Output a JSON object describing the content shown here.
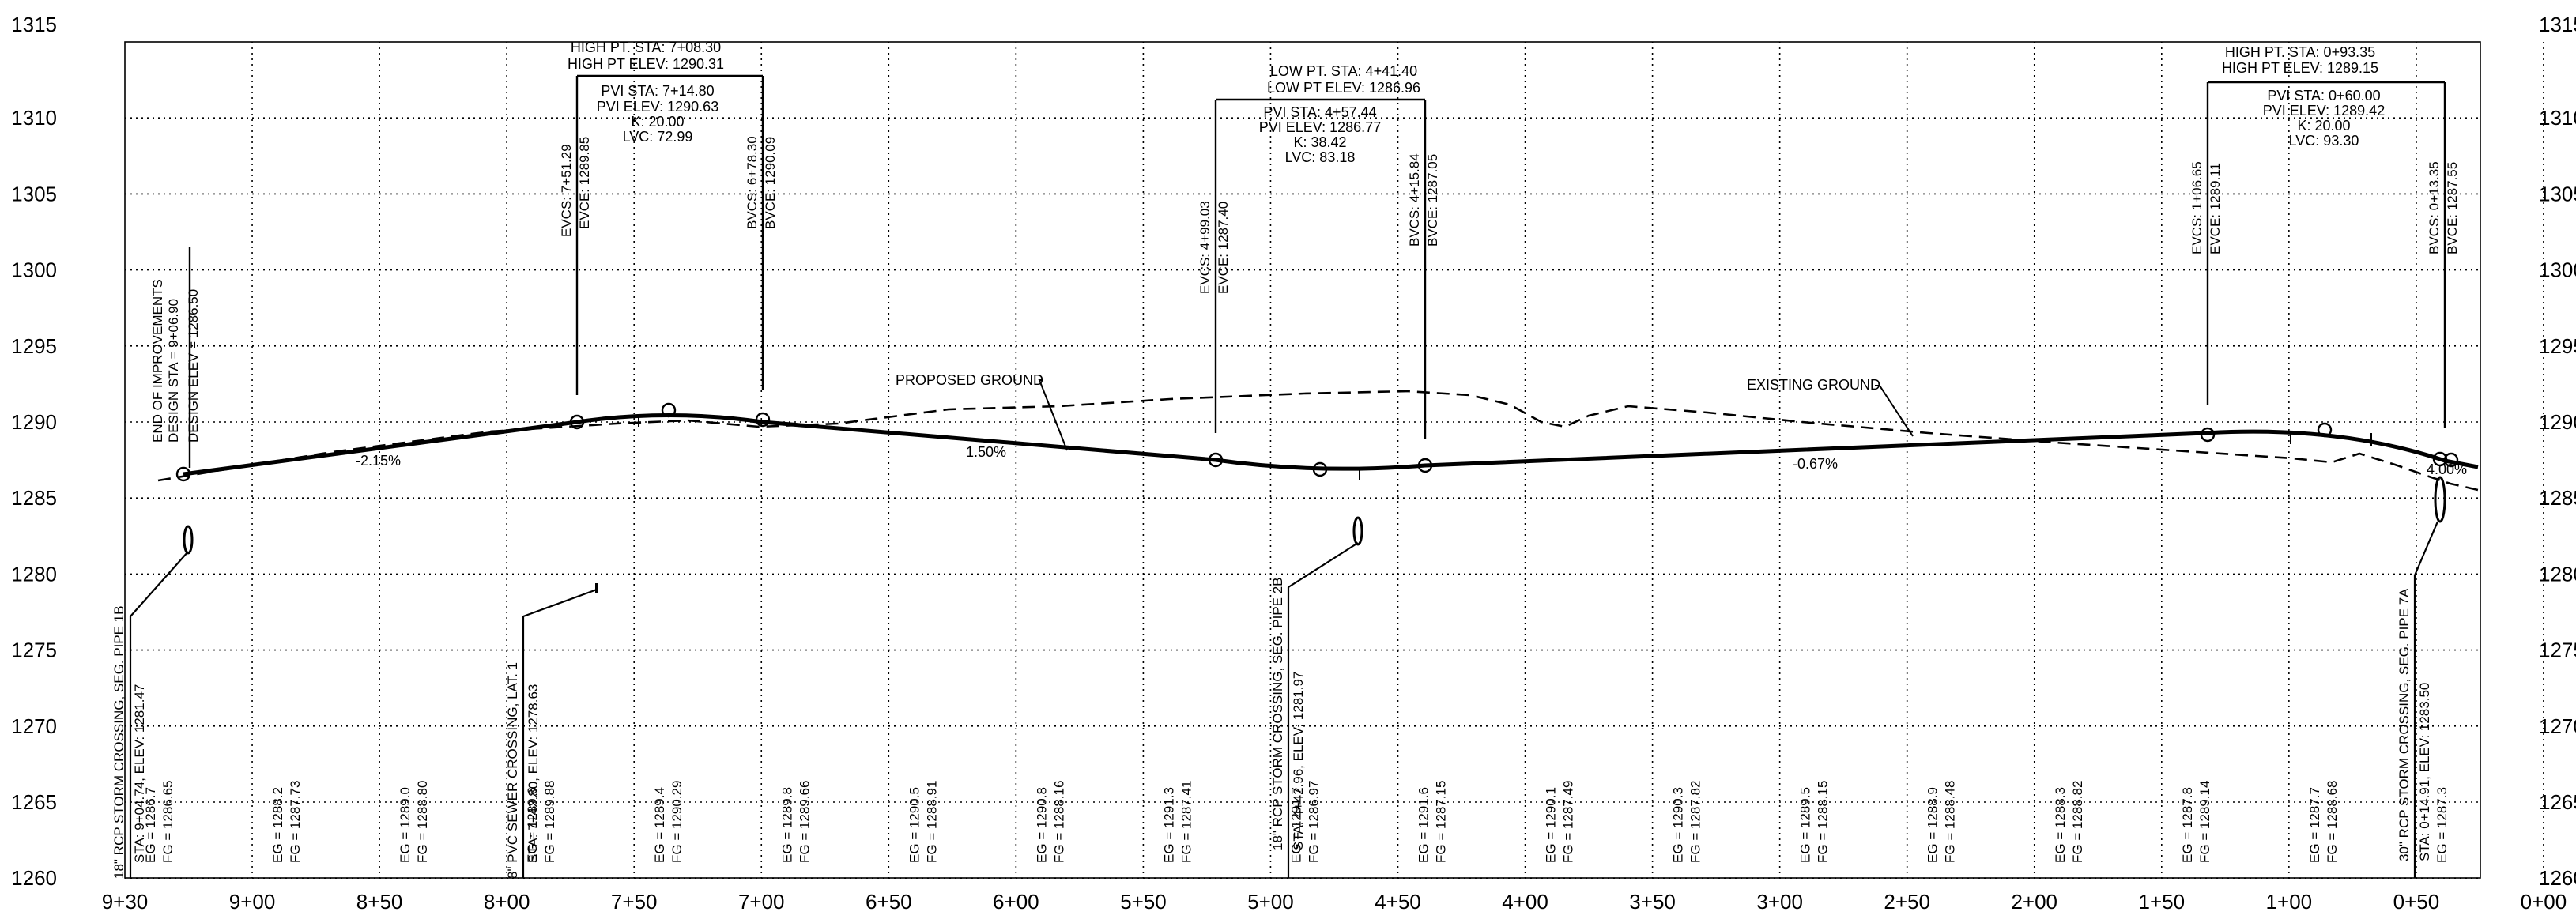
{
  "axes": {
    "y_ticks": [
      "1315",
      "1310",
      "1305",
      "1300",
      "1295",
      "1290",
      "1285",
      "1280",
      "1275",
      "1270",
      "1265",
      "1260"
    ],
    "x_ticks": [
      "9+30",
      "9+00",
      "8+50",
      "8+00",
      "7+50",
      "7+00",
      "6+50",
      "6+00",
      "5+50",
      "5+00",
      "4+50",
      "4+00",
      "3+50",
      "3+00",
      "2+50",
      "2+00",
      "1+50",
      "1+00",
      "0+50",
      "0+00"
    ]
  },
  "curves": [
    {
      "high": [
        "HIGH PT. STA: 7+08.30",
        "HIGH PT ELEV: 1290.31"
      ],
      "pvi": [
        "PVI STA: 7+14.80",
        "PVI ELEV: 1290.63",
        "K: 20.00",
        "LVC: 72.99"
      ],
      "bvc": [
        "BVCS: 6+78.30",
        "BVCE: 1290.09"
      ],
      "evc": [
        "EVCS: 7+51.29",
        "EVCE: 1289.85"
      ]
    },
    {
      "high": [
        "LOW PT. STA: 4+41.40",
        "LOW PT ELEV: 1286.96"
      ],
      "pvi": [
        "PVI STA: 4+57.44",
        "PVI ELEV: 1286.77",
        "K: 38.42",
        "LVC: 83.18"
      ],
      "bvc": [
        "BVCS: 4+15.84",
        "BVCE: 1287.05"
      ],
      "evc": [
        "EVCS: 4+99.03",
        "EVCE: 1287.40"
      ]
    },
    {
      "high": [
        "HIGH PT. STA: 0+93.35",
        "HIGH PT ELEV: 1289.15"
      ],
      "pvi": [
        "PVI STA: 0+60.00",
        "PVI ELEV: 1289.42",
        "K: 20.00",
        "LVC: 93.30"
      ],
      "bvc": [
        "BVCS: 0+13.35",
        "BVCE: 1287.55"
      ],
      "evc": [
        "EVCS: 1+06.65",
        "EVCE: 1289.11"
      ]
    }
  ],
  "end_note": [
    "END OF IMPROVEMENTS",
    "DESIGN STA = 9+06.90",
    "DESIGN ELEV = 1286.50"
  ],
  "ground_labels": {
    "proposed": "PROPOSED GROUND",
    "existing": "EXISTING GROUND"
  },
  "grades": [
    "-2.15%",
    "1.50%",
    "-0.67%",
    "4.00%"
  ],
  "crossings": [
    {
      "name": "18\" RCP STORM CROSSING, SEG. PIPE 1B",
      "sta": "STA: 9+04.74, ELEV: 1281.47"
    },
    {
      "name": "8\" PVC SEWER CROSSING, LAT. 1",
      "sta": "STA: 7+42.80, ELEV: 1278.63"
    },
    {
      "name": "18\" RCP STORM CROSSING, SEG. PIPE 2B",
      "sta": "STA: 4+42.96, ELEV: 1281.97"
    },
    {
      "name": "30\" RCP STORM CROSSING, SEG. PIPE 7A",
      "sta": "STA: 0+14.91, ELEV: 1283.50"
    }
  ],
  "elevations": [
    {
      "eg": "EG = 1286.7",
      "fg": "FG = 1286.65"
    },
    {
      "eg": "EG = 1288.2",
      "fg": "FG = 1287.73"
    },
    {
      "eg": "EG = 1289.0",
      "fg": "FG = 1288.80"
    },
    {
      "eg": "EG = 1289.6",
      "fg": "FG = 1289.88"
    },
    {
      "eg": "EG = 1289.4",
      "fg": "FG = 1290.29"
    },
    {
      "eg": "EG = 1289.8",
      "fg": "FG = 1289.66"
    },
    {
      "eg": "EG = 1290.5",
      "fg": "FG = 1288.91"
    },
    {
      "eg": "EG = 1290.8",
      "fg": "FG = 1288.16"
    },
    {
      "eg": "EG = 1291.3",
      "fg": "FG = 1287.41"
    },
    {
      "eg": "EG = 1291.7",
      "fg": "FG = 1286.97"
    },
    {
      "eg": "EG = 1291.6",
      "fg": "FG = 1287.15"
    },
    {
      "eg": "EG = 1290.1",
      "fg": "FG = 1287.49"
    },
    {
      "eg": "EG = 1290.3",
      "fg": "FG = 1287.82"
    },
    {
      "eg": "EG = 1289.5",
      "fg": "FG = 1288.15"
    },
    {
      "eg": "EG = 1288.9",
      "fg": "FG = 1288.48"
    },
    {
      "eg": "EG = 1288.3",
      "fg": "FG = 1288.82"
    },
    {
      "eg": "EG = 1287.8",
      "fg": "FG = 1289.14"
    },
    {
      "eg": "EG = 1287.7",
      "fg": "FG = 1288.68"
    },
    {
      "eg": "EG = 1287.3",
      "fg": ""
    }
  ]
}
